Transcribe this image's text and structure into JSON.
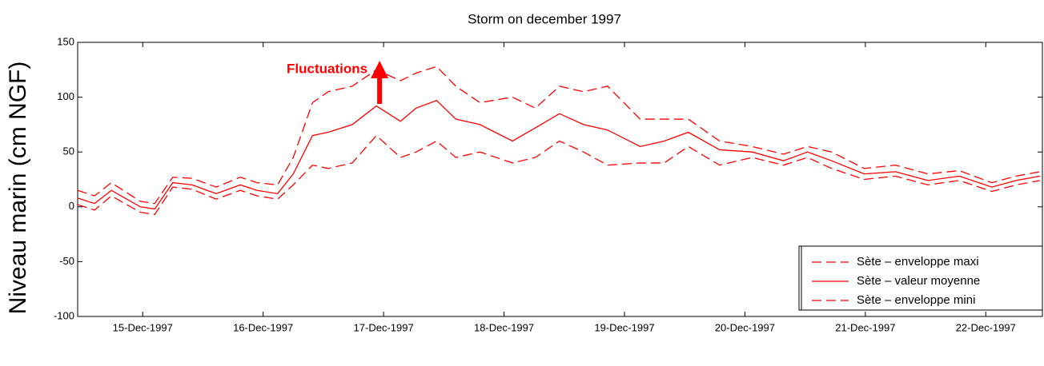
{
  "chart_data": {
    "type": "line",
    "title": "Storm on december 1997",
    "y_label": "Niveau marin (cm NGF)",
    "annotation": "Fluctuations",
    "x": [
      14.46,
      14.6,
      14.74,
      14.98,
      15.1,
      15.25,
      15.41,
      15.61,
      15.81,
      15.95,
      16.12,
      16.25,
      16.41,
      16.54,
      16.74,
      16.94,
      17.14,
      17.27,
      17.44,
      17.6,
      17.8,
      18.07,
      18.26,
      18.46,
      18.66,
      18.86,
      19.13,
      19.33,
      19.53,
      19.79,
      20.06,
      20.32,
      20.52,
      20.72,
      20.99,
      21.25,
      21.52,
      21.78,
      22.05,
      22.25,
      22.45
    ],
    "series": [
      {
        "name": "Sète – enveloppe maxi",
        "color": "#ff0000",
        "style": "dashed",
        "values": [
          15,
          10,
          22,
          5,
          3,
          27,
          26,
          18,
          27,
          22,
          20,
          45,
          95,
          105,
          110,
          125,
          115,
          122,
          128,
          110,
          95,
          100,
          90,
          110,
          105,
          110,
          80,
          80,
          80,
          60,
          55,
          48,
          55,
          50,
          35,
          38,
          30,
          33,
          22,
          28,
          32
        ]
      },
      {
        "name": "Sète – valeur moyenne",
        "color": "#ff0000",
        "style": "solid",
        "values": [
          8,
          3,
          15,
          0,
          -2,
          22,
          20,
          12,
          20,
          15,
          12,
          30,
          65,
          68,
          75,
          92,
          78,
          90,
          97,
          80,
          75,
          60,
          72,
          85,
          75,
          70,
          55,
          60,
          68,
          52,
          50,
          42,
          50,
          42,
          30,
          32,
          24,
          28,
          18,
          24,
          28
        ]
      },
      {
        "name": "Sète – enveloppe mini",
        "color": "#ff0000",
        "style": "dashed",
        "values": [
          2,
          -3,
          10,
          -5,
          -7,
          18,
          16,
          7,
          15,
          10,
          7,
          20,
          38,
          35,
          40,
          65,
          45,
          50,
          60,
          45,
          50,
          40,
          45,
          60,
          50,
          38,
          40,
          40,
          55,
          38,
          45,
          38,
          45,
          35,
          25,
          28,
          20,
          24,
          14,
          20,
          24
        ]
      }
    ],
    "xlim": [
      14.46,
      22.47
    ],
    "xticks": [
      {
        "value": 15,
        "label": "15-Dec-1997"
      },
      {
        "value": 16,
        "label": "16-Dec-1997"
      },
      {
        "value": 17,
        "label": "17-Dec-1997"
      },
      {
        "value": 18,
        "label": "18-Dec-1997"
      },
      {
        "value": 19,
        "label": "19-Dec-1997"
      },
      {
        "value": 20,
        "label": "20-Dec-1997"
      },
      {
        "value": 21,
        "label": "21-Dec-1997"
      },
      {
        "value": 22,
        "label": "22-Dec-1997"
      }
    ],
    "ylim": [
      -100,
      150
    ],
    "yticks": [
      -100,
      -50,
      0,
      50,
      100,
      150
    ],
    "grid": false,
    "legend": "lower right"
  }
}
